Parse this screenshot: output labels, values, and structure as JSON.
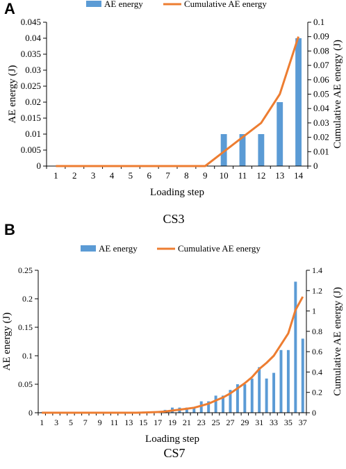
{
  "panels": [
    {
      "letter": "A",
      "caption": "CS3"
    },
    {
      "letter": "B",
      "caption": "CS7"
    }
  ],
  "colors": {
    "bar": "#5b9bd5",
    "line": "#ed7d31",
    "axis": "#000000"
  },
  "chart_data": [
    {
      "type": "bar",
      "title": "",
      "xlabel": "Loading step",
      "ylabel": "AE energy (J)",
      "y2label": "Cumulative AE energy (J)",
      "legend": {
        "placement": "top-center",
        "entries": [
          "AE energy",
          "Cumulative AE energy"
        ]
      },
      "grid": false,
      "categories": [
        "1",
        "2",
        "3",
        "4",
        "5",
        "6",
        "7",
        "8",
        "9",
        "10",
        "11",
        "12",
        "13",
        "14"
      ],
      "ylim": [
        0,
        0.045
      ],
      "yticks": [
        "0",
        "0.005",
        "0.01",
        "0.015",
        "0.02",
        "0.025",
        "0.03",
        "0.035",
        "0.04",
        "0.045"
      ],
      "y2lim": [
        0,
        0.1
      ],
      "y2ticks": [
        "0",
        "0.01",
        "0.02",
        "0.03",
        "0.04",
        "0.05",
        "0.06",
        "0.07",
        "0.08",
        "0.09",
        "0.1"
      ],
      "series": [
        {
          "name": "AE energy",
          "type": "bar",
          "axis": "left",
          "values": [
            0,
            0,
            0,
            0,
            0,
            0,
            0,
            0,
            0,
            0.01,
            0.01,
            0.01,
            0.02,
            0.04
          ]
        },
        {
          "name": "Cumulative AE energy",
          "type": "line",
          "axis": "right",
          "values": [
            0,
            0,
            0,
            0,
            0,
            0,
            0,
            0,
            0,
            0.01,
            0.02,
            0.03,
            0.05,
            0.09
          ]
        }
      ]
    },
    {
      "type": "bar",
      "title": "",
      "xlabel": "Loading step",
      "ylabel": "AE energy (J)",
      "y2label": "Cumulative AE energy (J)",
      "legend": {
        "placement": "top-center",
        "entries": [
          "AE energy",
          "Cumulative AE energy"
        ]
      },
      "grid": false,
      "categories": [
        "1",
        "2",
        "3",
        "4",
        "5",
        "6",
        "7",
        "8",
        "9",
        "10",
        "11",
        "12",
        "13",
        "14",
        "15",
        "16",
        "17",
        "18",
        "19",
        "20",
        "21",
        "22",
        "23",
        "24",
        "25",
        "26",
        "27",
        "28",
        "29",
        "30",
        "31",
        "32",
        "33",
        "34",
        "35",
        "36",
        "37"
      ],
      "xtick_labels_shown": [
        "1",
        "3",
        "5",
        "7",
        "9",
        "11",
        "13",
        "15",
        "17",
        "19",
        "21",
        "23",
        "25",
        "27",
        "29",
        "31",
        "33",
        "35",
        "37"
      ],
      "ylim": [
        0,
        0.25
      ],
      "yticks": [
        "0",
        "0.05",
        "0.1",
        "0.15",
        "0.2",
        "0.25"
      ],
      "y2lim": [
        0,
        1.4
      ],
      "y2ticks": [
        "0",
        "0.2",
        "0.4",
        "0.6",
        "0.8",
        "1",
        "1.2",
        "1.4"
      ],
      "series": [
        {
          "name": "AE energy",
          "type": "bar",
          "axis": "left",
          "values": [
            0.001,
            0.001,
            0.001,
            0.001,
            0.001,
            0.001,
            0.001,
            0.001,
            0.001,
            0.001,
            0.001,
            0.001,
            0.001,
            0.001,
            0.002,
            0.002,
            0.003,
            0.005,
            0.009,
            0.009,
            0.009,
            0.01,
            0.02,
            0.02,
            0.03,
            0.03,
            0.04,
            0.05,
            0.05,
            0.06,
            0.08,
            0.06,
            0.07,
            0.11,
            0.11,
            0.23,
            0.13
          ]
        },
        {
          "name": "Cumulative AE energy",
          "type": "line",
          "axis": "right",
          "values": [
            0,
            0,
            0,
            0,
            0,
            0,
            0,
            0,
            0,
            0,
            0,
            0,
            0,
            0,
            0.002,
            0.004,
            0.007,
            0.012,
            0.021,
            0.03,
            0.039,
            0.049,
            0.069,
            0.089,
            0.12,
            0.15,
            0.19,
            0.24,
            0.29,
            0.35,
            0.43,
            0.49,
            0.56,
            0.67,
            0.78,
            1.01,
            1.14
          ]
        }
      ]
    }
  ]
}
